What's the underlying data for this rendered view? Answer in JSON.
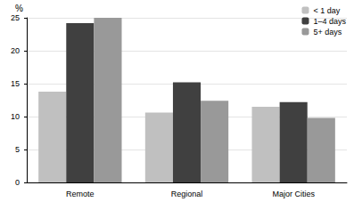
{
  "chart_data": {
    "type": "bar",
    "y_label": "%",
    "categories": [
      "Remote",
      "Regional",
      "Major Cities"
    ],
    "series": [
      {
        "name": "< 1 day",
        "color": "#c0c0c0",
        "values": [
          13.8,
          10.6,
          11.5
        ]
      },
      {
        "name": "1–4 days",
        "color": "#404040",
        "values": [
          24.2,
          15.2,
          12.2
        ]
      },
      {
        "name": "5+ days",
        "color": "#999999",
        "values": [
          25.0,
          12.4,
          9.8
        ]
      }
    ],
    "ylim": [
      0,
      25
    ],
    "yticks": [
      0,
      5,
      10,
      15,
      20,
      25
    ],
    "grid": true,
    "legend": "top-right"
  }
}
